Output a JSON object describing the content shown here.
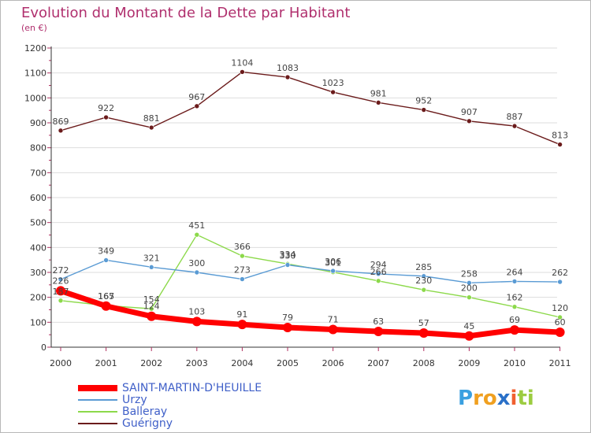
{
  "header": {
    "title": "Evolution du Montant de la Dette par Habitant",
    "unit": "(en €)"
  },
  "colors": {
    "title": "#b0306e",
    "legend_text": "#3f5fc8",
    "axis": "#333333",
    "grid": "#dddddd"
  },
  "chart_data": {
    "type": "line",
    "title": "Evolution du Montant de la Dette par Habitant",
    "ylabel": "(en €)",
    "xlabel": "",
    "categories": [
      "2000",
      "2001",
      "2002",
      "2003",
      "2004",
      "2005",
      "2006",
      "2007",
      "2008",
      "2009",
      "2010",
      "2011"
    ],
    "ylim": [
      0,
      1200
    ],
    "yticks": [
      0,
      100,
      200,
      300,
      400,
      500,
      600,
      700,
      800,
      900,
      1000,
      1100,
      1200
    ],
    "grid": "horizontal",
    "legend_position": "bottom-left",
    "series": [
      {
        "name": "SAINT-MARTIN-D'HEUILLE",
        "color": "#ff0000",
        "values": [
          226,
          165,
          124,
          103,
          91,
          79,
          71,
          63,
          57,
          45,
          69,
          60
        ]
      },
      {
        "name": "Urzy",
        "color": "#5a9bd4",
        "values": [
          272,
          349,
          321,
          300,
          273,
          330,
          306,
          294,
          285,
          258,
          264,
          262
        ]
      },
      {
        "name": "Balleray",
        "color": "#8cd94a",
        "values": [
          187,
          167,
          154,
          451,
          366,
          334,
          301,
          266,
          230,
          200,
          162,
          120
        ]
      },
      {
        "name": "Guérigny",
        "color": "#6b1b1b",
        "values": [
          869,
          922,
          881,
          967,
          1104,
          1083,
          1023,
          981,
          952,
          907,
          887,
          813
        ]
      }
    ]
  },
  "legend": {
    "items": [
      "SAINT-MARTIN-D'HEUILLE",
      "Urzy",
      "Balleray",
      "Guérigny"
    ]
  },
  "logo": {
    "letters": [
      "P",
      "r",
      "o",
      "x",
      "i",
      "t",
      "i"
    ],
    "colors": [
      "#3aa0e0",
      "#f0a020",
      "#f0a020",
      "#2a70c8",
      "#f06030",
      "#9ccc40",
      "#9ccc40"
    ]
  }
}
